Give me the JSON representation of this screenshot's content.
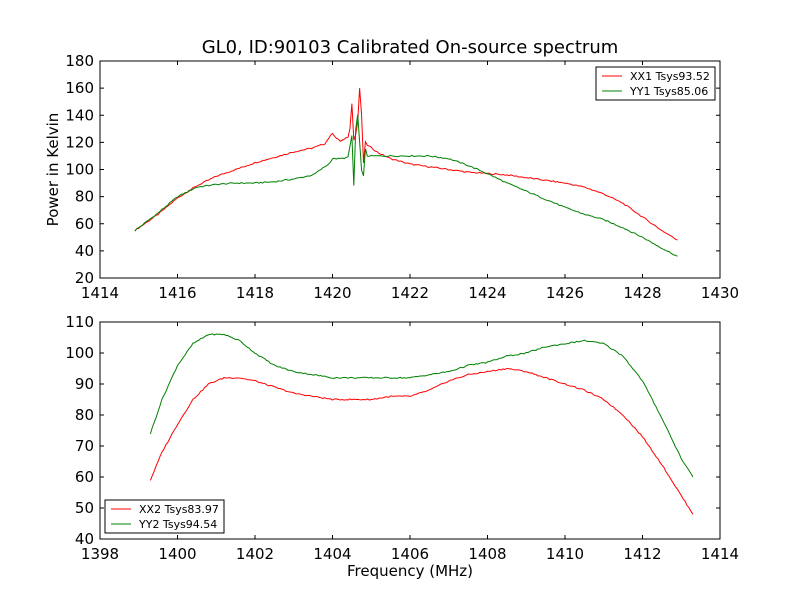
{
  "title": "GL0, ID:90103 Calibrated On-source spectrum",
  "colors": {
    "xx": "#ff0000",
    "yy": "#008000",
    "axes": "#000000",
    "background": "#ffffff"
  },
  "chart_data": [
    {
      "type": "line",
      "title": "GL0, ID:90103 Calibrated On-source spectrum",
      "xlabel": "",
      "ylabel": "Power in Kelvin",
      "xlim": [
        1414,
        1430
      ],
      "ylim": [
        20,
        180
      ],
      "xticks": [
        "1414",
        "1416",
        "1418",
        "1420",
        "1422",
        "1424",
        "1426",
        "1428",
        "1430"
      ],
      "yticks": [
        "20",
        "40",
        "60",
        "80",
        "100",
        "120",
        "140",
        "160",
        "180"
      ],
      "grid": false,
      "legend_position": "top-right",
      "series": [
        {
          "name": "XX1 Tsys93.52",
          "color": "#ff0000",
          "x": [
            1414.9,
            1415.5,
            1416.0,
            1416.5,
            1417.0,
            1417.5,
            1418.0,
            1418.5,
            1419.0,
            1419.5,
            1419.8,
            1420.0,
            1420.1,
            1420.2,
            1420.3,
            1420.4,
            1420.45,
            1420.5,
            1420.55,
            1420.6,
            1420.65,
            1420.7,
            1420.75,
            1420.8,
            1420.85,
            1420.9,
            1421.0,
            1421.2,
            1421.5,
            1422.0,
            1422.5,
            1423.0,
            1423.5,
            1424.0,
            1424.5,
            1425.0,
            1425.5,
            1426.0,
            1426.5,
            1427.0,
            1427.5,
            1428.0,
            1428.5,
            1428.9
          ],
          "y": [
            55,
            67,
            79,
            88,
            95,
            100,
            105,
            109,
            113,
            116,
            119,
            127,
            123,
            121,
            122,
            124,
            130,
            149,
            122,
            126,
            135,
            160,
            140,
            105,
            120,
            118,
            116,
            112,
            108,
            104,
            102,
            100,
            98,
            97,
            96,
            94,
            92,
            90,
            87,
            82,
            75,
            65,
            55,
            48
          ]
        },
        {
          "name": "YY1 Tsys85.06",
          "color": "#008000",
          "x": [
            1414.9,
            1415.5,
            1416.0,
            1416.5,
            1417.0,
            1417.5,
            1418.0,
            1418.5,
            1419.0,
            1419.5,
            1419.9,
            1420.0,
            1420.2,
            1420.4,
            1420.5,
            1420.55,
            1420.6,
            1420.65,
            1420.7,
            1420.75,
            1420.8,
            1420.85,
            1420.9,
            1421.0,
            1421.5,
            1422.0,
            1422.5,
            1423.0,
            1423.5,
            1424.0,
            1424.5,
            1425.0,
            1425.5,
            1426.0,
            1426.5,
            1427.0,
            1427.5,
            1428.0,
            1428.5,
            1428.9
          ],
          "y": [
            55,
            68,
            80,
            87,
            89,
            90,
            90,
            91,
            93,
            96,
            104,
            108,
            108,
            109,
            125,
            88,
            130,
            140,
            120,
            100,
            95,
            115,
            110,
            110,
            110,
            110,
            110,
            108,
            103,
            97,
            90,
            84,
            78,
            72,
            67,
            63,
            57,
            50,
            42,
            36
          ]
        }
      ]
    },
    {
      "type": "line",
      "title": "",
      "xlabel": "Frequency (MHz)",
      "ylabel": "",
      "xlim": [
        1398,
        1414
      ],
      "ylim": [
        40,
        110
      ],
      "xticks": [
        "1398",
        "1400",
        "1402",
        "1404",
        "1406",
        "1408",
        "1410",
        "1412",
        "1414"
      ],
      "yticks": [
        "40",
        "50",
        "60",
        "70",
        "80",
        "90",
        "100",
        "110"
      ],
      "grid": false,
      "legend_position": "bottom-left",
      "series": [
        {
          "name": "XX2 Tsys83.97",
          "color": "#ff0000",
          "x": [
            1399.3,
            1399.6,
            1400.0,
            1400.4,
            1400.8,
            1401.2,
            1401.6,
            1402.0,
            1402.5,
            1403.0,
            1403.5,
            1404.0,
            1404.5,
            1405.0,
            1405.5,
            1406.0,
            1406.5,
            1407.0,
            1407.5,
            1408.0,
            1408.5,
            1409.0,
            1409.5,
            1410.0,
            1410.5,
            1411.0,
            1411.5,
            1412.0,
            1412.5,
            1413.0,
            1413.3
          ],
          "y": [
            59,
            68,
            77,
            85,
            90,
            92,
            92,
            91,
            89,
            87,
            86,
            85,
            85,
            85,
            86,
            86,
            88,
            91,
            93,
            94,
            95,
            94,
            92,
            90,
            88,
            85,
            80,
            73,
            64,
            54,
            48
          ]
        },
        {
          "name": "YY2 Tsys94.54",
          "color": "#008000",
          "x": [
            1399.3,
            1399.6,
            1400.0,
            1400.4,
            1400.8,
            1401.2,
            1401.6,
            1402.0,
            1402.5,
            1403.0,
            1403.5,
            1404.0,
            1404.5,
            1405.0,
            1405.5,
            1406.0,
            1406.5,
            1407.0,
            1407.5,
            1408.0,
            1408.5,
            1409.0,
            1409.5,
            1410.0,
            1410.5,
            1411.0,
            1411.5,
            1412.0,
            1412.5,
            1413.0,
            1413.3
          ],
          "y": [
            74,
            85,
            96,
            103,
            106,
            106,
            104,
            100,
            96,
            94,
            93,
            92,
            92,
            92,
            92,
            92,
            93,
            94,
            96,
            97,
            99,
            100,
            102,
            103,
            104,
            103,
            99,
            91,
            79,
            66,
            60
          ]
        }
      ]
    }
  ]
}
